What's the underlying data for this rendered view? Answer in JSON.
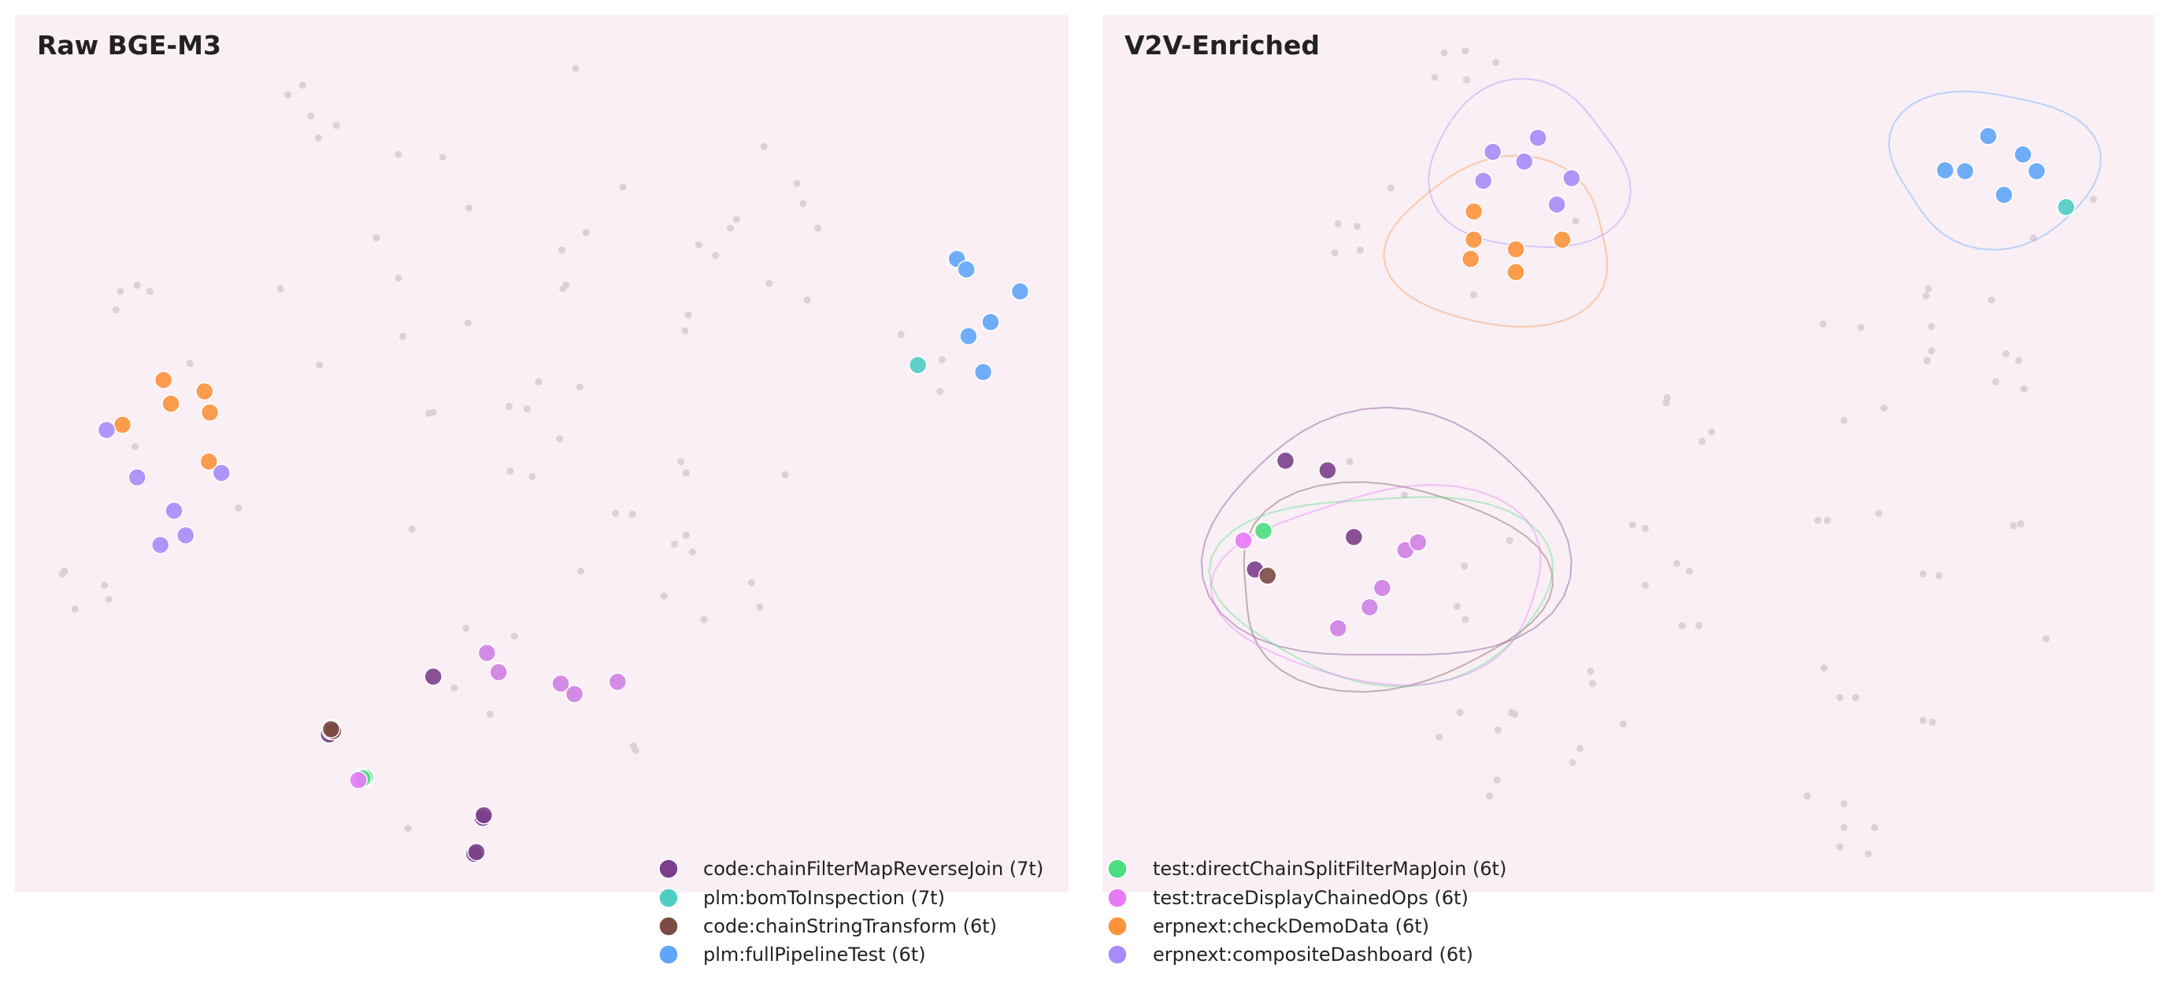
{
  "chart_data": [
    {
      "type": "scatter",
      "title": "Raw BGE-M3",
      "xlim": [
        0,
        100
      ],
      "ylim": [
        0,
        100
      ],
      "grid": false,
      "background_color": "#f9eff5",
      "background_points_color": "#ddd0d8",
      "background_points": [
        [
          25.9,
          90.9
        ],
        [
          27.3,
          92.0
        ],
        [
          28.1,
          88.5
        ],
        [
          30.5,
          87.4
        ],
        [
          28.8,
          86.0
        ],
        [
          53.2,
          93.9
        ],
        [
          36.4,
          84.1
        ],
        [
          40.6,
          83.8
        ],
        [
          43.1,
          78.0
        ],
        [
          34.3,
          74.6
        ],
        [
          25.2,
          68.8
        ],
        [
          36.4,
          70.0
        ],
        [
          36.8,
          63.4
        ],
        [
          28.9,
          60.1
        ],
        [
          43.0,
          64.9
        ],
        [
          71.1,
          85.0
        ],
        [
          74.2,
          80.8
        ],
        [
          74.8,
          78.5
        ],
        [
          76.2,
          75.7
        ],
        [
          68.5,
          76.7
        ],
        [
          67.9,
          75.7
        ],
        [
          64.9,
          73.8
        ],
        [
          66.5,
          72.6
        ],
        [
          57.7,
          80.4
        ],
        [
          54.2,
          75.2
        ],
        [
          51.9,
          73.2
        ],
        [
          52.3,
          69.2
        ],
        [
          52.0,
          68.8
        ],
        [
          63.9,
          65.8
        ],
        [
          63.6,
          64.0
        ],
        [
          71.6,
          69.4
        ],
        [
          75.2,
          67.5
        ],
        [
          11.6,
          69.2
        ],
        [
          12.8,
          68.5
        ],
        [
          10.0,
          68.5
        ],
        [
          9.6,
          66.4
        ],
        [
          16.6,
          60.3
        ],
        [
          11.4,
          50.8
        ],
        [
          21.2,
          43.8
        ],
        [
          4.7,
          36.6
        ],
        [
          4.5,
          36.3
        ],
        [
          8.5,
          35.0
        ],
        [
          8.9,
          33.4
        ],
        [
          5.7,
          32.3
        ],
        [
          39.3,
          54.6
        ],
        [
          39.7,
          54.7
        ],
        [
          46.9,
          55.4
        ],
        [
          48.6,
          55.1
        ],
        [
          49.7,
          58.2
        ],
        [
          53.6,
          57.6
        ],
        [
          51.7,
          51.7
        ],
        [
          47.0,
          48.0
        ],
        [
          49.1,
          47.4
        ],
        [
          37.7,
          41.4
        ],
        [
          57.0,
          43.2
        ],
        [
          58.6,
          43.1
        ],
        [
          63.2,
          49.1
        ],
        [
          63.7,
          47.8
        ],
        [
          73.1,
          47.6
        ],
        [
          62.6,
          39.7
        ],
        [
          63.7,
          40.7
        ],
        [
          64.3,
          38.8
        ],
        [
          53.7,
          36.6
        ],
        [
          61.6,
          33.8
        ],
        [
          65.4,
          31.1
        ],
        [
          69.9,
          35.3
        ],
        [
          70.7,
          32.5
        ],
        [
          42.8,
          30.1
        ],
        [
          47.4,
          29.2
        ],
        [
          41.7,
          23.3
        ],
        [
          45.1,
          20.3
        ],
        [
          58.7,
          16.7
        ],
        [
          58.9,
          16.2
        ],
        [
          37.3,
          7.3
        ],
        [
          84.1,
          63.6
        ],
        [
          88.0,
          60.7
        ],
        [
          87.8,
          57.1
        ],
        [
          44.8,
          9.0
        ]
      ],
      "series": [
        {
          "name": "code:chainFilterMapReverseJoin (7t)",
          "color": "#7b3f8c",
          "points": [
            [
              39.7,
              24.6
            ],
            [
              44.4,
              8.5
            ],
            [
              43.6,
              4.4
            ],
            [
              30.0,
              18.1
            ],
            [
              29.8,
              18.0
            ],
            [
              44.5,
              8.8
            ],
            [
              43.8,
              4.6
            ]
          ]
        },
        {
          "name": "plm:bomToInspection (7t)",
          "color": "#4ecdc4",
          "points": [
            [
              85.7,
              60.1
            ]
          ]
        },
        {
          "name": "code:chainStringTransform (6t)",
          "color": "#7b4b44",
          "points": [
            [
              30.1,
              18.5
            ],
            [
              30.2,
              18.6
            ],
            [
              30.0,
              18.4
            ],
            [
              30.1,
              18.7
            ],
            [
              30.2,
              18.4
            ],
            [
              30.0,
              18.6
            ]
          ]
        },
        {
          "name": "plm:fullPipelineTest (6t)",
          "color": "#60a5fa",
          "points": [
            [
              89.4,
              72.2
            ],
            [
              90.3,
              71.0
            ],
            [
              95.4,
              68.5
            ],
            [
              92.6,
              65.0
            ],
            [
              90.5,
              63.4
            ],
            [
              91.9,
              59.3
            ]
          ]
        },
        {
          "name": "test:directChainSplitFilterMapJoin (6t)",
          "color": "#4ade80",
          "points": [
            [
              33.1,
              13.1
            ],
            [
              33.2,
              13.0
            ],
            [
              33.0,
              13.2
            ],
            [
              33.1,
              13.2
            ],
            [
              33.2,
              13.1
            ],
            [
              33.0,
              13.0
            ]
          ]
        },
        {
          "name": "test:traceDisplayChainedOps (6t)",
          "color": "#e879f9",
          "points": [
            [
              32.6,
              12.8
            ]
          ]
        },
        {
          "name": "erpnext:checkDemoData (6t)",
          "color": "#fb923c",
          "points": [
            [
              14.1,
              58.4
            ],
            [
              14.8,
              55.7
            ],
            [
              18.0,
              57.1
            ],
            [
              18.5,
              54.7
            ],
            [
              10.2,
              53.3
            ],
            [
              18.4,
              49.1
            ]
          ]
        },
        {
          "name": "erpnext:compositeDashboard (6t)",
          "color": "#a78bfa",
          "points": [
            [
              8.7,
              52.7
            ],
            [
              11.6,
              47.3
            ],
            [
              19.6,
              47.8
            ],
            [
              15.1,
              43.5
            ],
            [
              16.2,
              40.7
            ],
            [
              13.8,
              39.6
            ]
          ]
        },
        {
          "color": "#cf7fe4",
          "points": [
            [
              44.8,
              27.3
            ],
            [
              45.9,
              25.1
            ],
            [
              51.8,
              23.8
            ],
            [
              53.1,
              22.6
            ],
            [
              57.2,
              24.0
            ]
          ]
        }
      ]
    },
    {
      "type": "scatter",
      "title": "V2V-Enriched",
      "xlim": [
        0,
        100
      ],
      "ylim": [
        0,
        100
      ],
      "grid": false,
      "background_color": "#f9eff5",
      "background_points_color": "#ddd0d8",
      "background_points": [
        [
          32.5,
          95.7
        ],
        [
          34.5,
          95.9
        ],
        [
          37.4,
          94.6
        ],
        [
          31.6,
          92.9
        ],
        [
          34.6,
          92.6
        ],
        [
          27.4,
          80.3
        ],
        [
          22.4,
          76.2
        ],
        [
          24.2,
          75.9
        ],
        [
          22.1,
          72.9
        ],
        [
          24.5,
          73.2
        ],
        [
          45.0,
          76.5
        ],
        [
          35.3,
          68.1
        ],
        [
          94.2,
          79.0
        ],
        [
          88.5,
          74.6
        ],
        [
          78.5,
          68.8
        ],
        [
          78.3,
          68.0
        ],
        [
          84.5,
          67.5
        ],
        [
          68.5,
          64.8
        ],
        [
          72.1,
          64.4
        ],
        [
          78.8,
          64.5
        ],
        [
          78.8,
          61.7
        ],
        [
          78.4,
          60.6
        ],
        [
          85.9,
          61.4
        ],
        [
          87.1,
          60.6
        ],
        [
          84.9,
          58.2
        ],
        [
          87.6,
          57.4
        ],
        [
          53.7,
          56.4
        ],
        [
          53.6,
          55.8
        ],
        [
          57.9,
          52.5
        ],
        [
          57.0,
          51.4
        ],
        [
          74.3,
          55.2
        ],
        [
          70.5,
          53.8
        ],
        [
          23.5,
          49.1
        ],
        [
          28.7,
          45.3
        ],
        [
          38.7,
          40.1
        ],
        [
          50.4,
          41.9
        ],
        [
          51.6,
          41.5
        ],
        [
          68.0,
          42.4
        ],
        [
          68.9,
          42.4
        ],
        [
          73.8,
          43.2
        ],
        [
          86.6,
          41.8
        ],
        [
          87.3,
          42.0
        ],
        [
          54.6,
          37.5
        ],
        [
          55.8,
          36.6
        ],
        [
          51.6,
          35.0
        ],
        [
          34.4,
          37.2
        ],
        [
          33.7,
          32.6
        ],
        [
          34.5,
          31.1
        ],
        [
          55.1,
          30.4
        ],
        [
          56.7,
          30.4
        ],
        [
          78.0,
          36.3
        ],
        [
          79.5,
          36.1
        ],
        [
          89.7,
          28.9
        ],
        [
          46.4,
          25.2
        ],
        [
          46.6,
          23.8
        ],
        [
          49.5,
          19.2
        ],
        [
          45.4,
          16.4
        ],
        [
          44.7,
          14.8
        ],
        [
          38.9,
          20.5
        ],
        [
          39.2,
          20.3
        ],
        [
          34.0,
          20.5
        ],
        [
          37.6,
          18.5
        ],
        [
          32.0,
          17.7
        ],
        [
          37.5,
          12.8
        ],
        [
          36.8,
          11.0
        ],
        [
          68.6,
          25.6
        ],
        [
          70.1,
          22.2
        ],
        [
          71.6,
          22.2
        ],
        [
          78.0,
          19.6
        ],
        [
          78.9,
          19.4
        ],
        [
          67.0,
          11.0
        ],
        [
          70.5,
          10.1
        ],
        [
          73.4,
          7.4
        ],
        [
          70.5,
          7.4
        ],
        [
          70.1,
          5.2
        ],
        [
          72.8,
          4.4
        ]
      ],
      "series": [
        {
          "name": "code:chainFilterMapReverseJoin (7t)",
          "color": "#7b3f8c",
          "points": [
            [
              17.4,
              49.2
            ],
            [
              21.4,
              48.1
            ],
            [
              23.9,
              40.5
            ],
            [
              14.5,
              36.8
            ]
          ]
        },
        {
          "name": "plm:bomToInspection (7t)",
          "color": "#4ecdc4",
          "points": [
            [
              91.6,
              78.1
            ]
          ]
        },
        {
          "name": "code:chainStringTransform (6t)",
          "color": "#7b4b44",
          "points": [
            [
              15.7,
              36.1
            ]
          ]
        },
        {
          "name": "plm:fullPipelineTest (6t)",
          "color": "#60a5fa",
          "points": [
            [
              84.2,
              86.2
            ],
            [
              87.5,
              84.1
            ],
            [
              80.1,
              82.3
            ],
            [
              82.0,
              82.2
            ],
            [
              88.8,
              82.2
            ],
            [
              85.7,
              79.5
            ]
          ]
        },
        {
          "name": "test:directChainSplitFilterMapJoin (6t)",
          "color": "#4ade80",
          "points": [
            [
              15.3,
              41.2
            ]
          ]
        },
        {
          "name": "test:traceDisplayChainedOps (6t)",
          "color": "#e879f9",
          "points": [
            [
              13.4,
              40.1
            ]
          ]
        },
        {
          "name": "erpnext:checkDemoData (6t)",
          "color": "#fb923c",
          "points": [
            [
              35.3,
              77.6
            ],
            [
              35.3,
              74.4
            ],
            [
              35.0,
              72.2
            ],
            [
              39.3,
              73.3
            ],
            [
              39.3,
              70.7
            ],
            [
              43.7,
              74.4
            ]
          ]
        },
        {
          "name": "erpnext:compositeDashboard (6t)",
          "color": "#a78bfa",
          "points": [
            [
              37.1,
              84.4
            ],
            [
              41.4,
              86.0
            ],
            [
              40.1,
              83.3
            ],
            [
              36.2,
              81.1
            ],
            [
              44.6,
              81.4
            ],
            [
              43.2,
              78.4
            ]
          ]
        },
        {
          "color": "#cf7fe4",
          "points": [
            [
              28.8,
              39.0
            ],
            [
              30.0,
              39.9
            ],
            [
              26.6,
              34.7
            ],
            [
              25.4,
              32.5
            ],
            [
              22.4,
              30.1
            ]
          ]
        }
      ],
      "density_contours": true
    }
  ],
  "legend": {
    "placement": "bottom-center",
    "columns": 2,
    "entries": [
      {
        "label": "code:chainFilterMapReverseJoin (7t)",
        "color": "#7b3f8c"
      },
      {
        "label": "plm:bomToInspection (7t)",
        "color": "#4ecdc4"
      },
      {
        "label": "code:chainStringTransform (6t)",
        "color": "#7b4b44"
      },
      {
        "label": "plm:fullPipelineTest (6t)",
        "color": "#60a5fa"
      },
      {
        "label": "test:directChainSplitFilterMapJoin (6t)",
        "color": "#4ade80"
      },
      {
        "label": "test:traceDisplayChainedOps (6t)",
        "color": "#e879f9"
      },
      {
        "label": "erpnext:checkDemoData (6t)",
        "color": "#fb923c"
      },
      {
        "label": "erpnext:compositeDashboard (6t)",
        "color": "#a78bfa"
      }
    ]
  }
}
